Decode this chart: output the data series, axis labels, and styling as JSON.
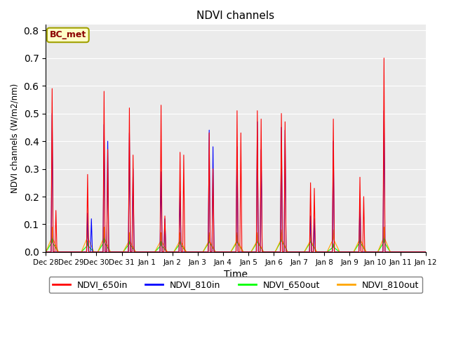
{
  "title": "NDVI channels",
  "xlabel": "Time",
  "ylabel": "NDVI channels (W/m2/nm)",
  "ylim": [
    0.0,
    0.82
  ],
  "yticks": [
    0.0,
    0.1,
    0.2,
    0.3,
    0.4,
    0.5,
    0.6,
    0.7,
    0.8
  ],
  "annotation_text": "BC_met",
  "annotation_color": "#8B0000",
  "annotation_bg": "#FFFFC8",
  "annotation_border": "#A0A000",
  "colors": {
    "NDVI_650in": "red",
    "NDVI_810in": "blue",
    "NDVI_650out": "lime",
    "NDVI_810out": "orange"
  },
  "legend_labels": [
    "NDVI_650in",
    "NDVI_810in",
    "NDVI_650out",
    "NDVI_810out"
  ],
  "xtick_labels": [
    "Dec 28",
    "Dec 29",
    "Dec 30",
    "Dec 31",
    "Jan 1",
    "Jan 2",
    "Jan 3",
    "Jan 4",
    "Jan 5",
    "Jan 6",
    "Jan 7",
    "Jan 8",
    "Jan 9",
    "Jan 10",
    "Jan 11",
    "Jan 12"
  ],
  "background_color": "#EBEBEB",
  "grid_color": "white",
  "figsize": [
    6.4,
    4.8
  ],
  "dpi": 100,
  "peaks_650in": [
    0.59,
    0.28,
    0.58,
    0.52,
    0.53,
    0.36,
    0.43,
    0.51,
    0.51,
    0.5,
    0.25,
    0.48,
    0.27,
    0.7,
    0.0
  ],
  "peaks_810in": [
    0.5,
    0.14,
    0.46,
    0.43,
    0.29,
    0.22,
    0.44,
    0.38,
    0.47,
    0.45,
    0.13,
    0.4,
    0.19,
    0.51,
    0.0
  ],
  "peaks_650out": [
    0.06,
    0.04,
    0.06,
    0.05,
    0.04,
    0.05,
    0.06,
    0.06,
    0.06,
    0.07,
    0.06,
    0.03,
    0.06,
    0.06,
    0.0
  ],
  "peaks_810out": [
    0.09,
    0.09,
    0.09,
    0.07,
    0.07,
    0.07,
    0.07,
    0.07,
    0.07,
    0.08,
    0.07,
    0.08,
    0.08,
    0.09,
    0.0
  ],
  "peak2_650in": [
    0.15,
    0.0,
    0.37,
    0.35,
    0.13,
    0.35,
    0.3,
    0.43,
    0.48,
    0.47,
    0.23,
    0.0,
    0.2,
    0.0,
    0.0
  ],
  "peak2_810in": [
    0.0,
    0.12,
    0.4,
    0.3,
    0.12,
    0.0,
    0.38,
    0.0,
    0.37,
    0.44,
    0.12,
    0.0,
    0.0,
    0.0,
    0.0
  ],
  "peak_offset": [
    0.25,
    0.65,
    0.3,
    0.3,
    0.55,
    0.3,
    0.45,
    0.55,
    0.35,
    0.3,
    0.45,
    0.35,
    0.4,
    0.35,
    0.5
  ]
}
